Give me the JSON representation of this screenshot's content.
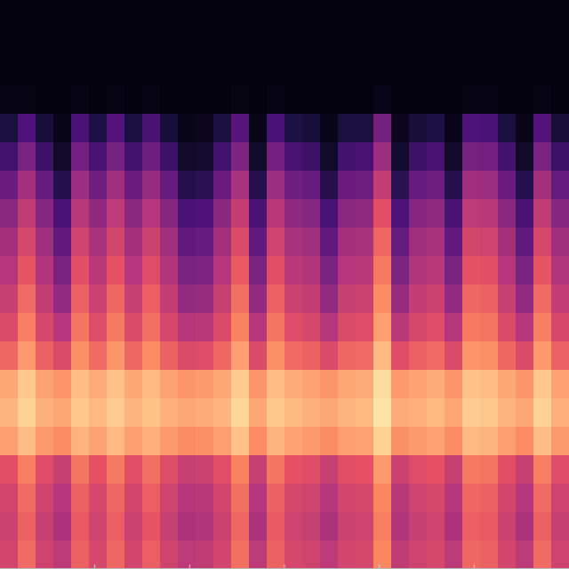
{
  "chart_data": {
    "type": "heatmap",
    "xlim": [
      0,
      6
    ],
    "xticks": [
      1,
      2,
      3,
      4,
      5
    ],
    "tick_labels": false,
    "color_range": [
      0,
      100
    ],
    "cells": [
      [
        2,
        2,
        2,
        2,
        2,
        2,
        2,
        2,
        2,
        2,
        2,
        2,
        2,
        2,
        2,
        2,
        2,
        2,
        2,
        2,
        2,
        2,
        2,
        2,
        2,
        2,
        2,
        2,
        2,
        2,
        2,
        2
      ],
      [
        2,
        2,
        2,
        2,
        2,
        2,
        2,
        2,
        2,
        2,
        2,
        2,
        2,
        2,
        2,
        2,
        2,
        2,
        2,
        2,
        2,
        2,
        2,
        2,
        2,
        2,
        2,
        2,
        2,
        2,
        2,
        2
      ],
      [
        2,
        2,
        2,
        2,
        2,
        2,
        2,
        2,
        2,
        2,
        2,
        2,
        2,
        2,
        2,
        2,
        2,
        2,
        2,
        2,
        2,
        2,
        2,
        2,
        2,
        2,
        2,
        2,
        2,
        2,
        2,
        2
      ],
      [
        3,
        3,
        2,
        2,
        3,
        2,
        3,
        2,
        3,
        2,
        2,
        2,
        2,
        3,
        2,
        3,
        2,
        2,
        2,
        2,
        2,
        4,
        2,
        2,
        2,
        2,
        3,
        3,
        2,
        2,
        3,
        2
      ],
      [
        12,
        25,
        11,
        4,
        24,
        13,
        26,
        12,
        23,
        11,
        4,
        5,
        12,
        27,
        4,
        24,
        13,
        11,
        4,
        12,
        12,
        34,
        5,
        11,
        13,
        4,
        25,
        24,
        12,
        4,
        26,
        11
      ],
      [
        22,
        36,
        21,
        8,
        34,
        23,
        35,
        22,
        33,
        21,
        8,
        9,
        22,
        37,
        8,
        34,
        23,
        21,
        8,
        22,
        23,
        44,
        9,
        21,
        23,
        8,
        35,
        34,
        22,
        8,
        36,
        21
      ],
      [
        32,
        46,
        31,
        15,
        44,
        33,
        45,
        32,
        43,
        31,
        15,
        16,
        32,
        47,
        15,
        44,
        33,
        31,
        15,
        32,
        33,
        54,
        16,
        31,
        33,
        15,
        45,
        44,
        32,
        15,
        46,
        31
      ],
      [
        40,
        53,
        39,
        24,
        51,
        41,
        52,
        40,
        50,
        39,
        24,
        25,
        40,
        54,
        24,
        51,
        41,
        39,
        24,
        40,
        41,
        62,
        25,
        39,
        41,
        24,
        52,
        51,
        40,
        24,
        53,
        39
      ],
      [
        46,
        59,
        45,
        30,
        57,
        47,
        58,
        46,
        56,
        45,
        30,
        31,
        46,
        60,
        30,
        57,
        47,
        45,
        30,
        46,
        47,
        68,
        31,
        45,
        47,
        30,
        58,
        57,
        46,
        30,
        59,
        45
      ],
      [
        50,
        64,
        49,
        36,
        62,
        51,
        63,
        50,
        61,
        49,
        36,
        37,
        50,
        65,
        36,
        62,
        51,
        49,
        36,
        50,
        51,
        72,
        37,
        49,
        51,
        36,
        63,
        62,
        50,
        36,
        64,
        49
      ],
      [
        55,
        69,
        54,
        42,
        67,
        56,
        68,
        55,
        66,
        54,
        42,
        43,
        55,
        70,
        42,
        67,
        56,
        54,
        42,
        55,
        56,
        76,
        43,
        54,
        56,
        42,
        68,
        67,
        55,
        42,
        69,
        54
      ],
      [
        60,
        73,
        59,
        50,
        71,
        61,
        72,
        60,
        70,
        59,
        50,
        51,
        60,
        74,
        50,
        71,
        61,
        59,
        50,
        60,
        61,
        80,
        51,
        59,
        61,
        50,
        72,
        71,
        60,
        50,
        73,
        59
      ],
      [
        68,
        79,
        67,
        60,
        77,
        69,
        78,
        68,
        76,
        67,
        60,
        61,
        68,
        80,
        60,
        77,
        69,
        67,
        60,
        68,
        69,
        86,
        61,
        67,
        69,
        60,
        78,
        77,
        68,
        60,
        79,
        67
      ],
      [
        82,
        89,
        81,
        78,
        87,
        83,
        88,
        82,
        86,
        81,
        78,
        79,
        82,
        90,
        78,
        87,
        83,
        81,
        78,
        82,
        83,
        93,
        79,
        81,
        83,
        78,
        88,
        87,
        82,
        78,
        89,
        81
      ],
      [
        85,
        91,
        84,
        82,
        89,
        86,
        90,
        85,
        88,
        84,
        82,
        83,
        85,
        92,
        82,
        89,
        86,
        84,
        82,
        85,
        86,
        95,
        83,
        84,
        86,
        82,
        90,
        89,
        85,
        82,
        91,
        84
      ],
      [
        80,
        87,
        79,
        76,
        85,
        81,
        86,
        80,
        84,
        79,
        76,
        77,
        80,
        88,
        76,
        85,
        81,
        79,
        76,
        80,
        81,
        91,
        77,
        79,
        81,
        76,
        86,
        85,
        80,
        76,
        87,
        79
      ],
      [
        62,
        73,
        61,
        55,
        71,
        63,
        72,
        62,
        70,
        61,
        55,
        56,
        62,
        74,
        55,
        71,
        63,
        61,
        55,
        62,
        63,
        79,
        56,
        61,
        63,
        55,
        72,
        71,
        62,
        55,
        73,
        61
      ],
      [
        58,
        69,
        57,
        50,
        67,
        59,
        68,
        58,
        66,
        57,
        50,
        51,
        58,
        70,
        50,
        67,
        59,
        57,
        50,
        58,
        59,
        75,
        51,
        57,
        59,
        50,
        68,
        67,
        58,
        50,
        69,
        57
      ],
      [
        56,
        67,
        55,
        48,
        65,
        57,
        66,
        56,
        64,
        55,
        48,
        49,
        56,
        68,
        48,
        65,
        57,
        55,
        48,
        56,
        57,
        73,
        49,
        55,
        57,
        48,
        66,
        65,
        56,
        48,
        67,
        55
      ],
      [
        58,
        69,
        57,
        52,
        67,
        59,
        68,
        58,
        66,
        57,
        52,
        53,
        58,
        70,
        52,
        67,
        59,
        57,
        52,
        58,
        59,
        75,
        53,
        57,
        59,
        52,
        68,
        67,
        58,
        52,
        69,
        57
      ]
    ]
  }
}
